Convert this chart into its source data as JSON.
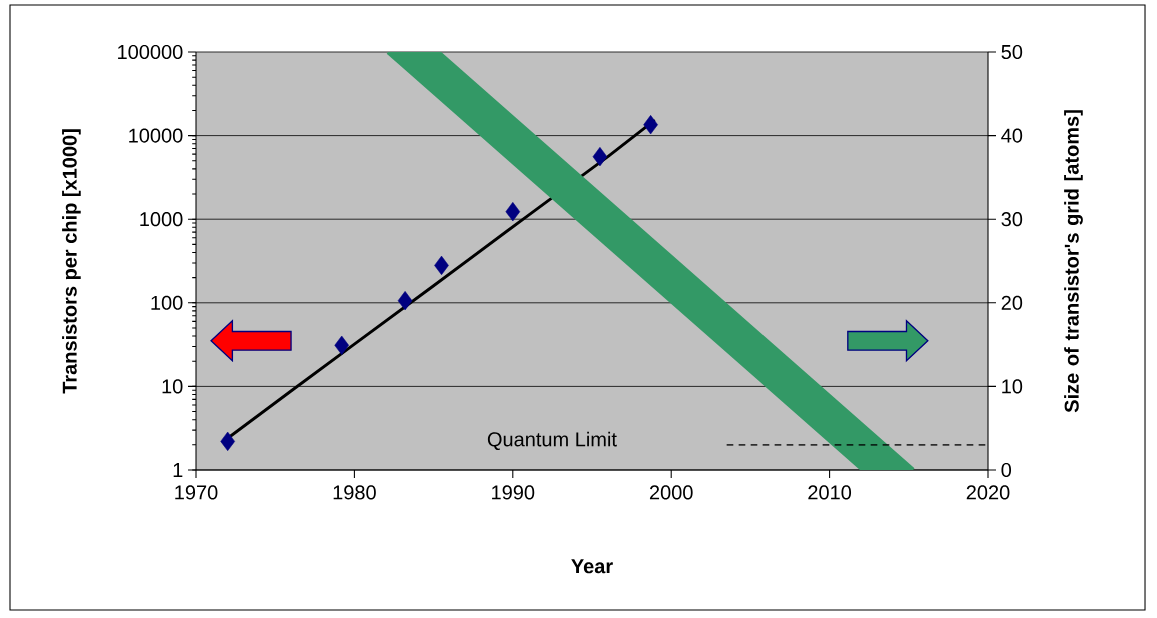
{
  "chart_data": {
    "type": "scatter",
    "xlabel": "Year",
    "ylabel": "Transistors per chip [x1000]",
    "y2label": "Size of transistor's grid [atoms]",
    "xlim": [
      1970,
      2020
    ],
    "xticks": [
      1970,
      1980,
      1990,
      2000,
      2010,
      2020
    ],
    "ylim": [
      1,
      100000
    ],
    "yticks": [
      1,
      10,
      100,
      1000,
      10000,
      100000
    ],
    "log": "y",
    "y2lim": [
      0,
      50
    ],
    "y2ticks": [
      0,
      10,
      20,
      30,
      40,
      50
    ],
    "grid": "y",
    "series": [
      {
        "type": "scatter",
        "color": "#000080",
        "marker": "diamond",
        "x": [
          1972.0,
          1979.2,
          1983.2,
          1985.5,
          1990.0,
          1995.5,
          1998.7
        ],
        "values": [
          2.2,
          31,
          106,
          280,
          1230,
          5600,
          13500
        ]
      },
      {
        "type": "line",
        "color": "#000000",
        "marker": "none",
        "x": [
          1972.0,
          1976.0,
          1980.0,
          1985.0,
          1991.0,
          1996.0,
          1998.9
        ],
        "values": [
          2.4,
          8.8,
          32,
          160,
          1120,
          5600,
          15000
        ]
      },
      {
        "type": "line",
        "axis": "y2",
        "color": "#339966",
        "x": [
          1983.7,
          2013.7
        ],
        "values": [
          50,
          0
        ]
      }
    ],
    "ref_lines": [
      {
        "axis": "y2",
        "value": 3,
        "label": "Quantum Limit",
        "color": "#000000",
        "line_style": "dashed"
      }
    ]
  }
}
